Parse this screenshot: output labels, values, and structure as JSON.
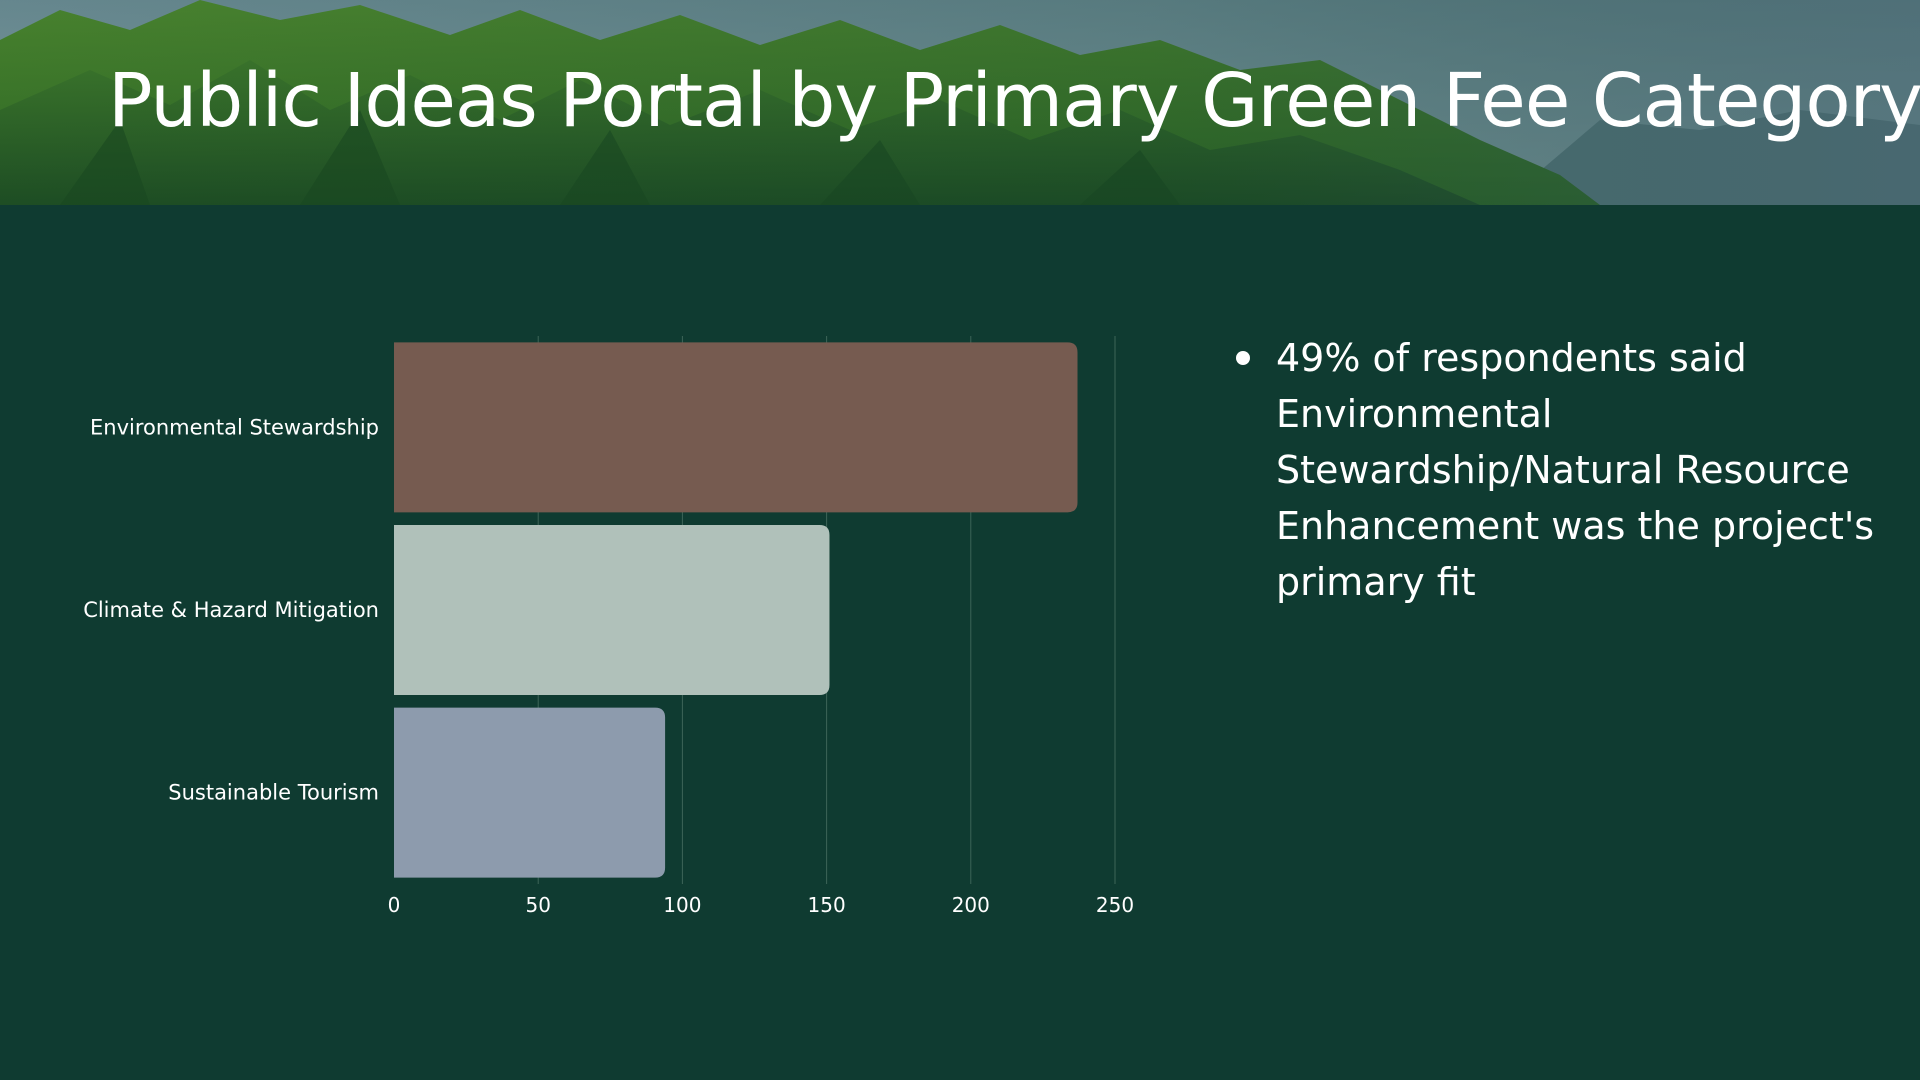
{
  "slide": {
    "title": "Public Ideas Portal by Primary Green Fee Category",
    "background_color": "#0f3b31",
    "banner": "mountain-landscape-photo"
  },
  "notes": [
    "49% of respondents said Environmental Stewardship/Natural Resource Enhancement was the project's primary fit"
  ],
  "chart_data": {
    "type": "bar",
    "orientation": "horizontal",
    "categories": [
      "Environmental Stewardship",
      "Climate & Hazard Mitigation",
      "Sustainable Tourism"
    ],
    "values": [
      237,
      151,
      94
    ],
    "colors": [
      "#765b50",
      "#b0c1ba",
      "#8d9bad"
    ],
    "xlim": [
      0,
      250
    ],
    "xticks": [
      0,
      50,
      100,
      150,
      200,
      250
    ],
    "grid": true,
    "title": "",
    "xlabel": "",
    "ylabel": ""
  }
}
